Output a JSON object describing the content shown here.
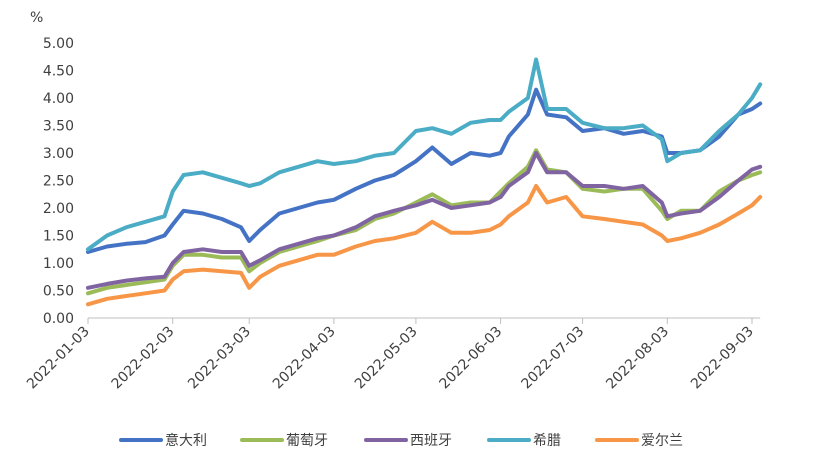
{
  "chart_data": {
    "type": "line",
    "y_unit": "%",
    "ylim": [
      0,
      5
    ],
    "y_ticks": [
      "0.00",
      "0.50",
      "1.00",
      "1.50",
      "2.00",
      "2.50",
      "3.00",
      "3.50",
      "4.00",
      "4.50",
      "5.00"
    ],
    "x_tick_labels": [
      "2022-01-03",
      "2022-02-03",
      "2022-03-03",
      "2022-04-03",
      "2022-05-03",
      "2022-06-03",
      "2022-07-03",
      "2022-08-03",
      "2022-09-03"
    ],
    "x": [
      "2022-01-03",
      "2022-01-10",
      "2022-01-17",
      "2022-01-24",
      "2022-01-31",
      "2022-02-03",
      "2022-02-07",
      "2022-02-14",
      "2022-02-21",
      "2022-02-28",
      "2022-03-03",
      "2022-03-07",
      "2022-03-14",
      "2022-03-21",
      "2022-03-28",
      "2022-04-03",
      "2022-04-11",
      "2022-04-18",
      "2022-04-25",
      "2022-05-03",
      "2022-05-09",
      "2022-05-16",
      "2022-05-23",
      "2022-05-30",
      "2022-06-03",
      "2022-06-06",
      "2022-06-13",
      "2022-06-16",
      "2022-06-20",
      "2022-06-27",
      "2022-07-03",
      "2022-07-11",
      "2022-07-18",
      "2022-07-25",
      "2022-08-01",
      "2022-08-03",
      "2022-08-08",
      "2022-08-15",
      "2022-08-22",
      "2022-08-29",
      "2022-09-03",
      "2022-09-06"
    ],
    "series": [
      {
        "name": "意大利",
        "color": "#4472C4",
        "values": [
          1.2,
          1.3,
          1.35,
          1.38,
          1.5,
          1.7,
          1.95,
          1.9,
          1.8,
          1.65,
          1.4,
          1.6,
          1.9,
          2.0,
          2.1,
          2.15,
          2.35,
          2.5,
          2.6,
          2.85,
          3.1,
          2.8,
          3.0,
          2.95,
          3.0,
          3.3,
          3.7,
          4.15,
          3.7,
          3.65,
          3.4,
          3.45,
          3.35,
          3.4,
          3.3,
          3.0,
          3.0,
          3.05,
          3.3,
          3.7,
          3.8,
          3.9
        ]
      },
      {
        "name": "葡萄牙",
        "color": "#9BBB59",
        "values": [
          0.45,
          0.55,
          0.6,
          0.65,
          0.7,
          0.95,
          1.15,
          1.15,
          1.1,
          1.1,
          0.85,
          1.0,
          1.2,
          1.3,
          1.4,
          1.5,
          1.6,
          1.8,
          1.9,
          2.1,
          2.25,
          2.05,
          2.1,
          2.1,
          2.3,
          2.45,
          2.75,
          3.05,
          2.7,
          2.65,
          2.35,
          2.3,
          2.35,
          2.35,
          1.95,
          1.8,
          1.95,
          1.95,
          2.3,
          2.5,
          2.6,
          2.65
        ]
      },
      {
        "name": "西班牙",
        "color": "#8064A2",
        "values": [
          0.55,
          0.62,
          0.68,
          0.72,
          0.75,
          1.0,
          1.2,
          1.25,
          1.2,
          1.2,
          0.95,
          1.05,
          1.25,
          1.35,
          1.45,
          1.5,
          1.65,
          1.85,
          1.95,
          2.05,
          2.15,
          2.0,
          2.05,
          2.1,
          2.2,
          2.4,
          2.65,
          3.0,
          2.65,
          2.65,
          2.4,
          2.4,
          2.35,
          2.4,
          2.1,
          1.85,
          1.9,
          1.95,
          2.2,
          2.5,
          2.7,
          2.75
        ]
      },
      {
        "name": "希腊",
        "color": "#4BACC6",
        "values": [
          1.25,
          1.5,
          1.65,
          1.75,
          1.85,
          2.3,
          2.6,
          2.65,
          2.55,
          2.45,
          2.4,
          2.45,
          2.65,
          2.75,
          2.85,
          2.8,
          2.85,
          2.95,
          3.0,
          3.4,
          3.45,
          3.35,
          3.55,
          3.6,
          3.6,
          3.75,
          4.0,
          4.7,
          3.8,
          3.8,
          3.55,
          3.45,
          3.45,
          3.5,
          3.25,
          2.85,
          3.0,
          3.05,
          3.4,
          3.7,
          4.0,
          4.25
        ]
      },
      {
        "name": "爱尔兰",
        "color": "#F79646",
        "values": [
          0.25,
          0.35,
          0.4,
          0.45,
          0.5,
          0.7,
          0.85,
          0.88,
          0.85,
          0.82,
          0.55,
          0.75,
          0.95,
          1.05,
          1.15,
          1.15,
          1.3,
          1.4,
          1.45,
          1.55,
          1.75,
          1.55,
          1.55,
          1.6,
          1.7,
          1.85,
          2.1,
          2.4,
          2.1,
          2.2,
          1.85,
          1.8,
          1.75,
          1.7,
          1.5,
          1.4,
          1.45,
          1.55,
          1.7,
          1.9,
          2.05,
          2.2
        ]
      }
    ],
    "legend": "bottom",
    "grid": false
  }
}
